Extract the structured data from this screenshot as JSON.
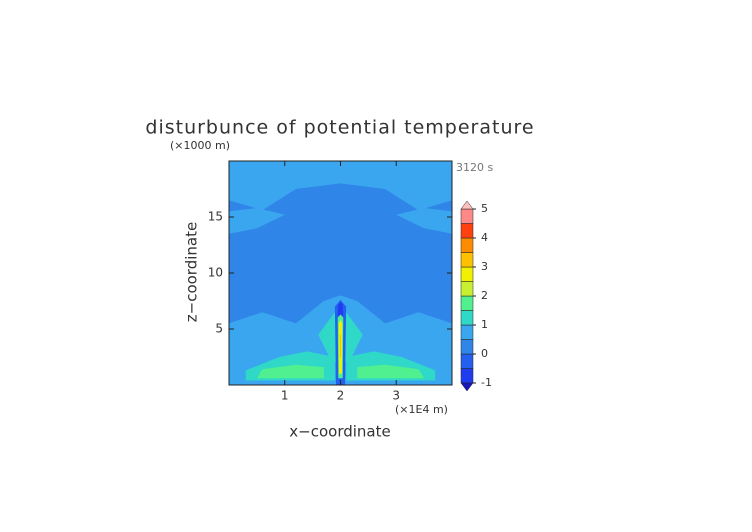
{
  "chart_data": {
    "type": "contour",
    "title": "disturbunce of potential temperature",
    "time_label": "3120 s",
    "x_label": "x−coordinate",
    "y_label": "z−coordinate",
    "x_unit": "(×1E4 m)",
    "y_unit": "(×1000 m)",
    "xlim": [
      0,
      4
    ],
    "ylim": [
      0,
      20
    ],
    "xticks": [
      1,
      2,
      3
    ],
    "yticks": [
      5,
      10,
      15
    ],
    "colorbar": {
      "levels": [
        -1,
        -0.5,
        0,
        0.5,
        1,
        1.5,
        2,
        2.5,
        3,
        3.5,
        4,
        4.5,
        5
      ],
      "ticks": [
        -1,
        0,
        1,
        2,
        3,
        4,
        5
      ],
      "under_color": "#1818b8",
      "over_color": "#ffc0c0",
      "colors": [
        "#1f3cf0",
        "#2460f0",
        "#2f86e8",
        "#3aa6f0",
        "#30d8c8",
        "#50f090",
        "#c8f030",
        "#f0f000",
        "#ffc000",
        "#ff8c00",
        "#ff4010",
        "#ff8888"
      ]
    }
  }
}
